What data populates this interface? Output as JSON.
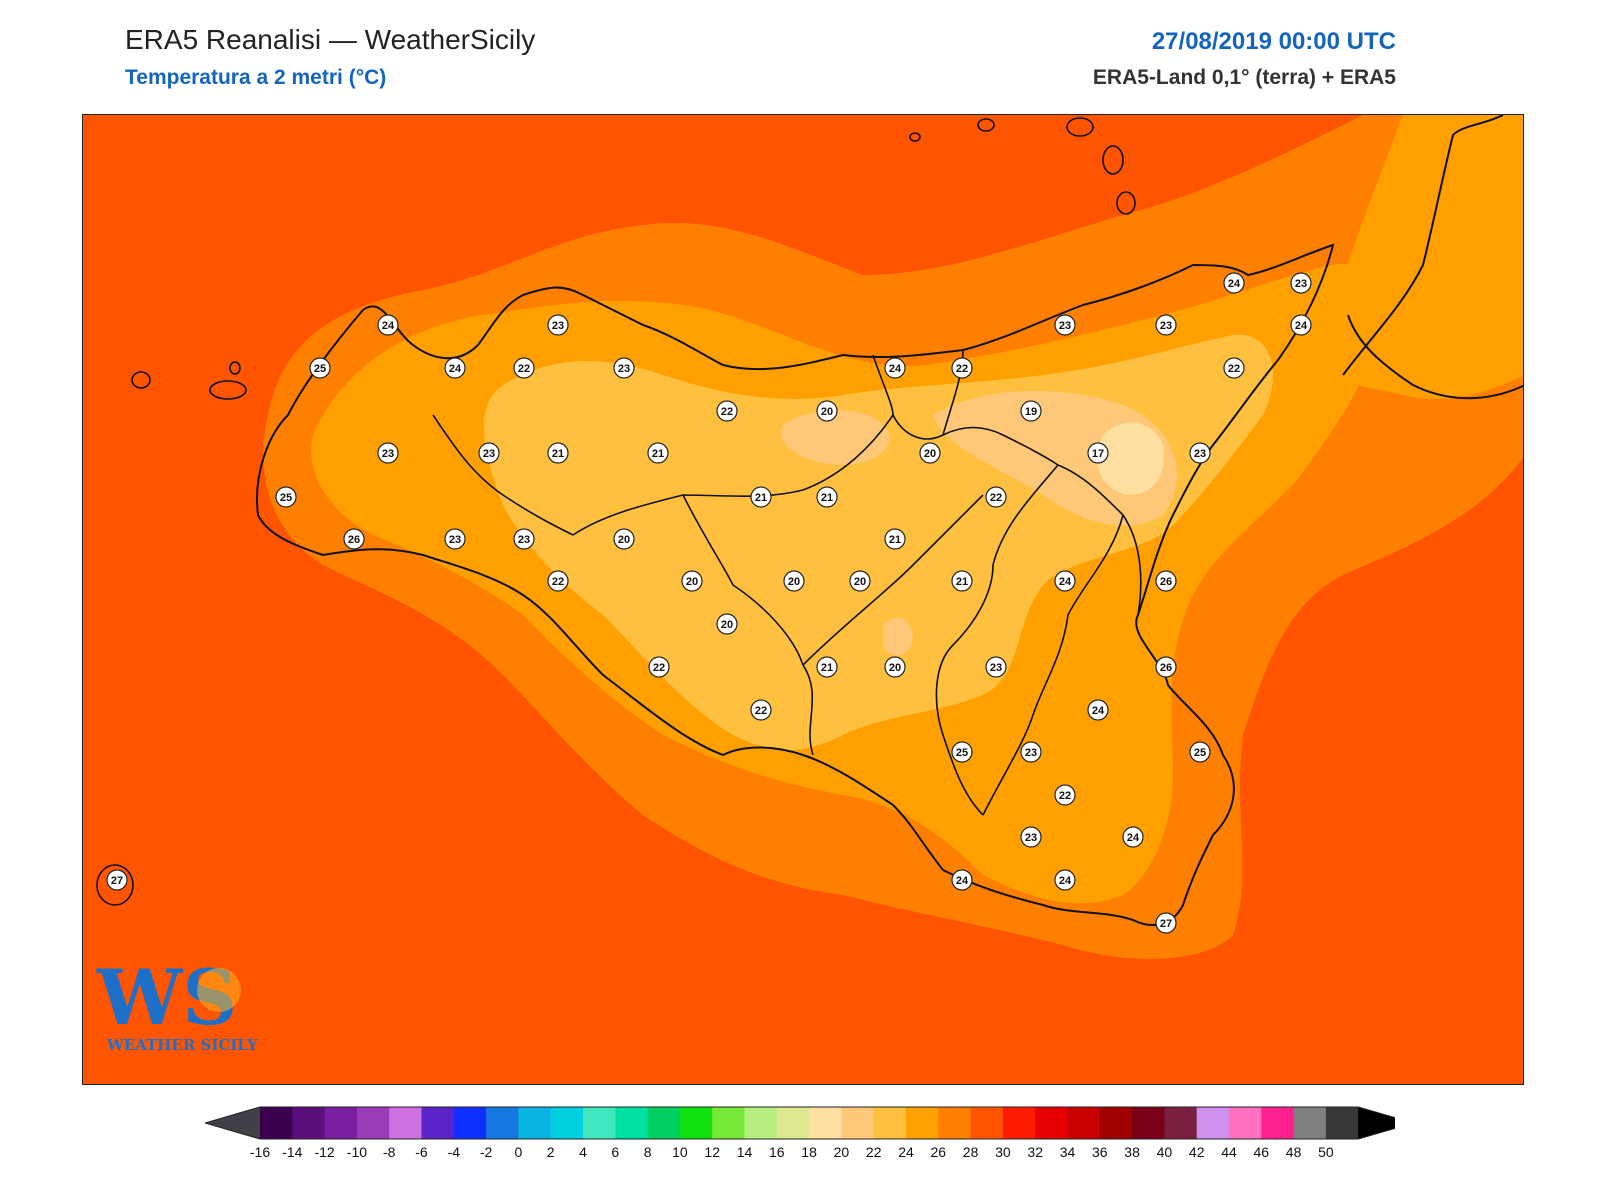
{
  "header": {
    "title": "ERA5 Reanalisi — WeatherSicily",
    "subtitle": "Temperatura a 2 metri (°C)",
    "datetime": "27/08/2019 00:00 UTC",
    "source": "ERA5-Land 0,1° (terra) + ERA5"
  },
  "logo": {
    "letters": "WS",
    "name": "WEATHER SICILY"
  },
  "colorbar": {
    "ticks": [
      "-16",
      "-14",
      "-12",
      "-10",
      "-8",
      "-6",
      "-4",
      "-2",
      "0",
      "2",
      "4",
      "6",
      "8",
      "10",
      "12",
      "14",
      "16",
      "18",
      "20",
      "22",
      "24",
      "26",
      "28",
      "30",
      "32",
      "34",
      "36",
      "38",
      "40",
      "42",
      "44",
      "46",
      "48",
      "50"
    ],
    "colors": [
      "#3b0050",
      "#5a0f7a",
      "#7a1fa0",
      "#9b3bb8",
      "#d070e0",
      "#5a24c8",
      "#1030ff",
      "#1478e0",
      "#0ab4e0",
      "#00d0e0",
      "#40e8c0",
      "#00e0a0",
      "#00d060",
      "#10e010",
      "#78e838",
      "#b8ee80",
      "#dde890",
      "#ffe0a0",
      "#ffc878",
      "#ffc040",
      "#ffa000",
      "#ff8000",
      "#ff5500",
      "#ff1a00",
      "#e60000",
      "#c80000",
      "#a00000",
      "#7a0018",
      "#7a2040",
      "#d090f0",
      "#ff70c0",
      "#ff2090",
      "#808080",
      "#383838"
    ],
    "under_color": "#404048",
    "over_color": "#000000"
  },
  "stations": [
    {
      "v": "24"
    },
    {
      "v": "23"
    },
    {
      "v": "25"
    },
    {
      "v": "24"
    },
    {
      "v": "22"
    },
    {
      "v": "23"
    },
    {
      "v": "22"
    },
    {
      "v": "20"
    },
    {
      "v": "23"
    },
    {
      "v": "23"
    },
    {
      "v": "21"
    },
    {
      "v": "21"
    },
    {
      "v": "25"
    },
    {
      "v": "26"
    },
    {
      "v": "23"
    },
    {
      "v": "23"
    },
    {
      "v": "20"
    },
    {
      "v": "21"
    },
    {
      "v": "21"
    },
    {
      "v": "22"
    },
    {
      "v": "20"
    },
    {
      "v": "20"
    },
    {
      "v": "20"
    },
    {
      "v": "20"
    },
    {
      "v": "22"
    },
    {
      "v": "22"
    },
    {
      "v": "21"
    },
    {
      "v": "20"
    },
    {
      "v": "24"
    },
    {
      "v": "22"
    },
    {
      "v": "23"
    },
    {
      "v": "23"
    },
    {
      "v": "24"
    },
    {
      "v": "23"
    },
    {
      "v": "24"
    },
    {
      "v": "22"
    },
    {
      "v": "19"
    },
    {
      "v": "20"
    },
    {
      "v": "17"
    },
    {
      "v": "23"
    },
    {
      "v": "22"
    },
    {
      "v": "21"
    },
    {
      "v": "21"
    },
    {
      "v": "24"
    },
    {
      "v": "26"
    },
    {
      "v": "23"
    },
    {
      "v": "26"
    },
    {
      "v": "24"
    },
    {
      "v": "25"
    },
    {
      "v": "23"
    },
    {
      "v": "25"
    },
    {
      "v": "22"
    },
    {
      "v": "23"
    },
    {
      "v": "24"
    },
    {
      "v": "24"
    },
    {
      "v": "24"
    },
    {
      "v": "27"
    },
    {
      "v": "27"
    }
  ]
}
